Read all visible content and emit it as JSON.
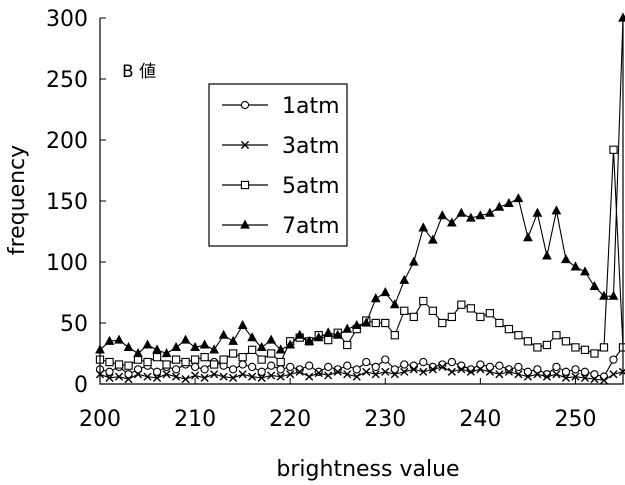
{
  "chart_data": {
    "type": "line",
    "title": "",
    "annotation": "B 値",
    "xlabel": "brightness value",
    "ylabel": "frequency",
    "xlim": [
      200,
      255
    ],
    "ylim": [
      0,
      300
    ],
    "xticks": [
      "200",
      "210",
      "220",
      "230",
      "240",
      "250"
    ],
    "yticks": [
      "0",
      "50",
      "100",
      "150",
      "200",
      "250",
      "300"
    ],
    "grid": false,
    "legend_position": "upper-left",
    "x": [
      200,
      201,
      202,
      203,
      204,
      205,
      206,
      207,
      208,
      209,
      210,
      211,
      212,
      213,
      214,
      215,
      216,
      217,
      218,
      219,
      220,
      221,
      222,
      223,
      224,
      225,
      226,
      227,
      228,
      229,
      230,
      231,
      232,
      233,
      234,
      235,
      236,
      237,
      238,
      239,
      240,
      241,
      242,
      243,
      244,
      245,
      246,
      247,
      248,
      249,
      250,
      251,
      252,
      253,
      254,
      255
    ],
    "series": [
      {
        "name": "1atm",
        "marker": "circle",
        "values": [
          12,
          10,
          14,
          8,
          12,
          15,
          10,
          14,
          12,
          16,
          14,
          12,
          18,
          15,
          12,
          16,
          14,
          10,
          15,
          12,
          14,
          12,
          15,
          10,
          14,
          12,
          15,
          12,
          18,
          14,
          20,
          12,
          16,
          15,
          18,
          14,
          16,
          18,
          15,
          12,
          16,
          14,
          15,
          12,
          14,
          10,
          12,
          8,
          14,
          10,
          12,
          10,
          8,
          6,
          20,
          30
        ]
      },
      {
        "name": "3atm",
        "marker": "x",
        "values": [
          8,
          5,
          6,
          4,
          8,
          6,
          5,
          8,
          6,
          4,
          7,
          5,
          8,
          6,
          5,
          8,
          6,
          5,
          7,
          6,
          8,
          10,
          6,
          9,
          7,
          10,
          8,
          6,
          10,
          8,
          10,
          8,
          10,
          12,
          10,
          12,
          14,
          10,
          12,
          10,
          12,
          10,
          8,
          10,
          8,
          6,
          8,
          6,
          8,
          5,
          6,
          5,
          4,
          3,
          8,
          10
        ]
      },
      {
        "name": "5atm",
        "marker": "square",
        "values": [
          20,
          18,
          16,
          15,
          20,
          18,
          22,
          16,
          20,
          18,
          20,
          22,
          16,
          20,
          25,
          22,
          28,
          20,
          25,
          18,
          35,
          38,
          35,
          40,
          36,
          42,
          32,
          45,
          52,
          50,
          50,
          40,
          60,
          55,
          68,
          60,
          50,
          55,
          65,
          62,
          55,
          58,
          50,
          45,
          40,
          35,
          30,
          32,
          40,
          35,
          30,
          28,
          25,
          30,
          192,
          30
        ]
      },
      {
        "name": "7atm",
        "marker": "triangle",
        "values": [
          28,
          35,
          36,
          30,
          25,
          32,
          28,
          25,
          30,
          36,
          30,
          32,
          28,
          40,
          35,
          48,
          38,
          30,
          36,
          28,
          32,
          40,
          35,
          38,
          42,
          40,
          45,
          48,
          50,
          70,
          75,
          65,
          85,
          100,
          128,
          118,
          138,
          132,
          140,
          136,
          138,
          140,
          145,
          148,
          152,
          120,
          140,
          105,
          142,
          102,
          96,
          92,
          80,
          72,
          72,
          300
        ]
      }
    ]
  }
}
